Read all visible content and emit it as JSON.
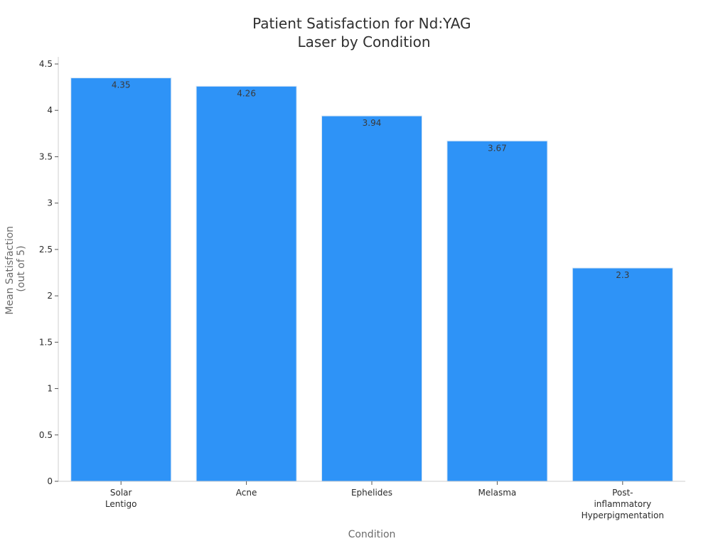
{
  "chart_data": {
    "type": "bar",
    "title": [
      "Patient Satisfaction for Nd:YAG",
      "Laser by Condition"
    ],
    "xlabel": "Condition",
    "ylabel": [
      "Mean Satisfaction",
      "(out of 5)"
    ],
    "categories": [
      [
        "Solar",
        "Lentigo"
      ],
      [
        "Acne"
      ],
      [
        "Ephelides"
      ],
      [
        "Melasma"
      ],
      [
        "Post-",
        "inflammatory",
        "Hyperpigmentation"
      ]
    ],
    "values": [
      4.35,
      4.26,
      3.94,
      3.67,
      2.3
    ],
    "data_labels": [
      "4.35",
      "4.26",
      "3.94",
      "3.67",
      "2.3"
    ],
    "ylim": [
      0,
      4.5
    ],
    "yticks": [
      0,
      0.5,
      1,
      1.5,
      2,
      2.5,
      3,
      3.5,
      4,
      4.5
    ],
    "ytick_labels": [
      "0",
      "0.5",
      "1",
      "1.5",
      "2",
      "2.5",
      "3",
      "3.5",
      "4",
      "4.5"
    ],
    "grid": false,
    "legend": "none",
    "colors": {
      "bar": "#2e93f7",
      "bar_edge": "#d6e6f5",
      "axis": "#cccccc"
    }
  }
}
